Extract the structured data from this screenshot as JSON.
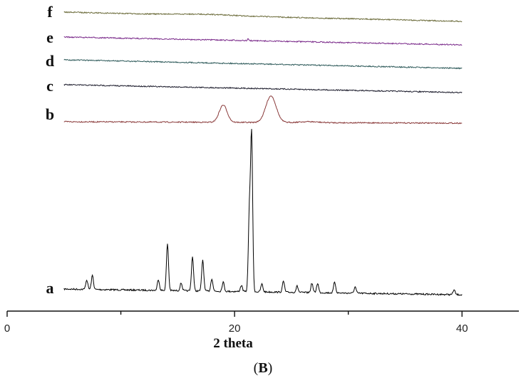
{
  "caption": {
    "open": "(",
    "letter": "B",
    "close": ")"
  },
  "chart_data": {
    "type": "line",
    "xlabel": "2 theta",
    "ylabel": "",
    "xlim": [
      0,
      45
    ],
    "x_ticks": [
      0,
      20,
      40
    ],
    "grid": false,
    "legend": "curve letters at left of each trace",
    "series": [
      {
        "name": "a",
        "color": "#000000",
        "x_range": [
          5,
          40
        ],
        "baseline": 0,
        "peaks": [
          {
            "x": 7.0,
            "h": 0.06
          },
          {
            "x": 7.5,
            "h": 0.09
          },
          {
            "x": 13.3,
            "h": 0.07
          },
          {
            "x": 14.1,
            "h": 0.3
          },
          {
            "x": 15.3,
            "h": 0.05
          },
          {
            "x": 16.3,
            "h": 0.22
          },
          {
            "x": 17.2,
            "h": 0.2
          },
          {
            "x": 18.0,
            "h": 0.08
          },
          {
            "x": 19.0,
            "h": 0.06
          },
          {
            "x": 20.6,
            "h": 0.04
          },
          {
            "x": 21.3,
            "h": 0.5
          },
          {
            "x": 21.5,
            "h": 1.0
          },
          {
            "x": 22.4,
            "h": 0.05
          },
          {
            "x": 24.3,
            "h": 0.07
          },
          {
            "x": 25.5,
            "h": 0.04
          },
          {
            "x": 26.8,
            "h": 0.06
          },
          {
            "x": 27.3,
            "h": 0.06
          },
          {
            "x": 28.8,
            "h": 0.07
          },
          {
            "x": 30.6,
            "h": 0.04
          },
          {
            "x": 39.3,
            "h": 0.03
          }
        ]
      },
      {
        "name": "b",
        "color": "#8a3a3a",
        "x_range": [
          5,
          40
        ],
        "baseline": 0,
        "peaks": [
          {
            "x": 19.0,
            "h": 0.55,
            "w": 0.35
          },
          {
            "x": 23.2,
            "h": 0.85,
            "w": 0.45
          },
          {
            "x": 26.5,
            "h": 0.03,
            "w": 0.8
          }
        ]
      },
      {
        "name": "c",
        "color": "#1a1a2a",
        "x_range": [
          5,
          40
        ],
        "baseline": 0,
        "peaks": []
      },
      {
        "name": "d",
        "color": "#2e5a5a",
        "x_range": [
          5,
          40
        ],
        "baseline": 0,
        "peaks": []
      },
      {
        "name": "e",
        "color": "#7a2a8a",
        "x_range": [
          5,
          40
        ],
        "baseline": 0,
        "peaks": [
          {
            "x": 19.9,
            "h": 0.04,
            "w": 0.06
          },
          {
            "x": 21.2,
            "h": 0.1,
            "w": 0.05
          }
        ]
      },
      {
        "name": "f",
        "color": "#6b6b3a",
        "x_range": [
          5,
          40
        ],
        "baseline": 0,
        "peaks": [
          {
            "x": 17.5,
            "h": 0.05,
            "w": 2.5
          }
        ]
      }
    ]
  }
}
